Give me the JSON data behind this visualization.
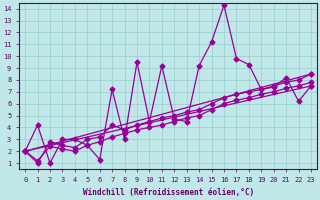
{
  "xlabel": "Windchill (Refroidissement éolien,°C)",
  "ylabel": "",
  "bg_color": "#c0e8e8",
  "line_color": "#990099",
  "grid_color": "#99cccc",
  "xlim": [
    -0.5,
    23.5
  ],
  "ylim": [
    0.5,
    14.5
  ],
  "xticks": [
    0,
    1,
    2,
    3,
    4,
    5,
    6,
    7,
    8,
    9,
    10,
    11,
    12,
    13,
    14,
    15,
    16,
    17,
    18,
    19,
    20,
    21,
    22,
    23
  ],
  "yticks": [
    1,
    2,
    3,
    4,
    5,
    6,
    7,
    8,
    9,
    10,
    11,
    12,
    13,
    14
  ],
  "line1_x": [
    0,
    1,
    2,
    3,
    4,
    5,
    6,
    7,
    8,
    9,
    10,
    11,
    12,
    13,
    14,
    15,
    16,
    17,
    18,
    19,
    20,
    21,
    22,
    23
  ],
  "line1_y": [
    2.0,
    4.2,
    1.0,
    3.0,
    3.0,
    2.5,
    1.3,
    7.2,
    3.0,
    9.5,
    4.5,
    9.2,
    4.7,
    4.5,
    9.2,
    11.2,
    14.3,
    9.8,
    9.3,
    7.2,
    7.4,
    8.2,
    6.2,
    7.5
  ],
  "line2_x": [
    0,
    1,
    2,
    3,
    4,
    5,
    6,
    7,
    8,
    9,
    10,
    11,
    12,
    13,
    14,
    15,
    16,
    17,
    18,
    19,
    20,
    21,
    22,
    23
  ],
  "line2_y": [
    2.0,
    1.0,
    2.8,
    2.5,
    2.3,
    3.0,
    3.2,
    4.2,
    3.8,
    4.2,
    4.5,
    4.8,
    5.0,
    5.3,
    5.5,
    6.0,
    6.5,
    6.8,
    7.0,
    7.2,
    7.5,
    7.8,
    8.0,
    8.5
  ],
  "line3_x": [
    0,
    1,
    2,
    3,
    4,
    5,
    6,
    7,
    8,
    9,
    10,
    11,
    12,
    13,
    14,
    15,
    16,
    17,
    18,
    19,
    20,
    21,
    22,
    23
  ],
  "line3_y": [
    2.0,
    1.2,
    2.4,
    2.2,
    2.0,
    2.5,
    2.8,
    3.2,
    3.5,
    3.8,
    4.0,
    4.2,
    4.5,
    4.8,
    5.0,
    5.5,
    6.0,
    6.3,
    6.5,
    6.8,
    7.0,
    7.3,
    7.5,
    7.8
  ],
  "line4_x": [
    0,
    23
  ],
  "line4_y": [
    2.0,
    7.5
  ],
  "line5_x": [
    0,
    23
  ],
  "line5_y": [
    2.0,
    8.5
  ],
  "marker": "D",
  "markersize": 2.5,
  "linewidth": 0.9,
  "tick_fontsize": 5.0,
  "label_fontsize": 5.5,
  "axis_color": "#660066",
  "spine_color": "#660066"
}
